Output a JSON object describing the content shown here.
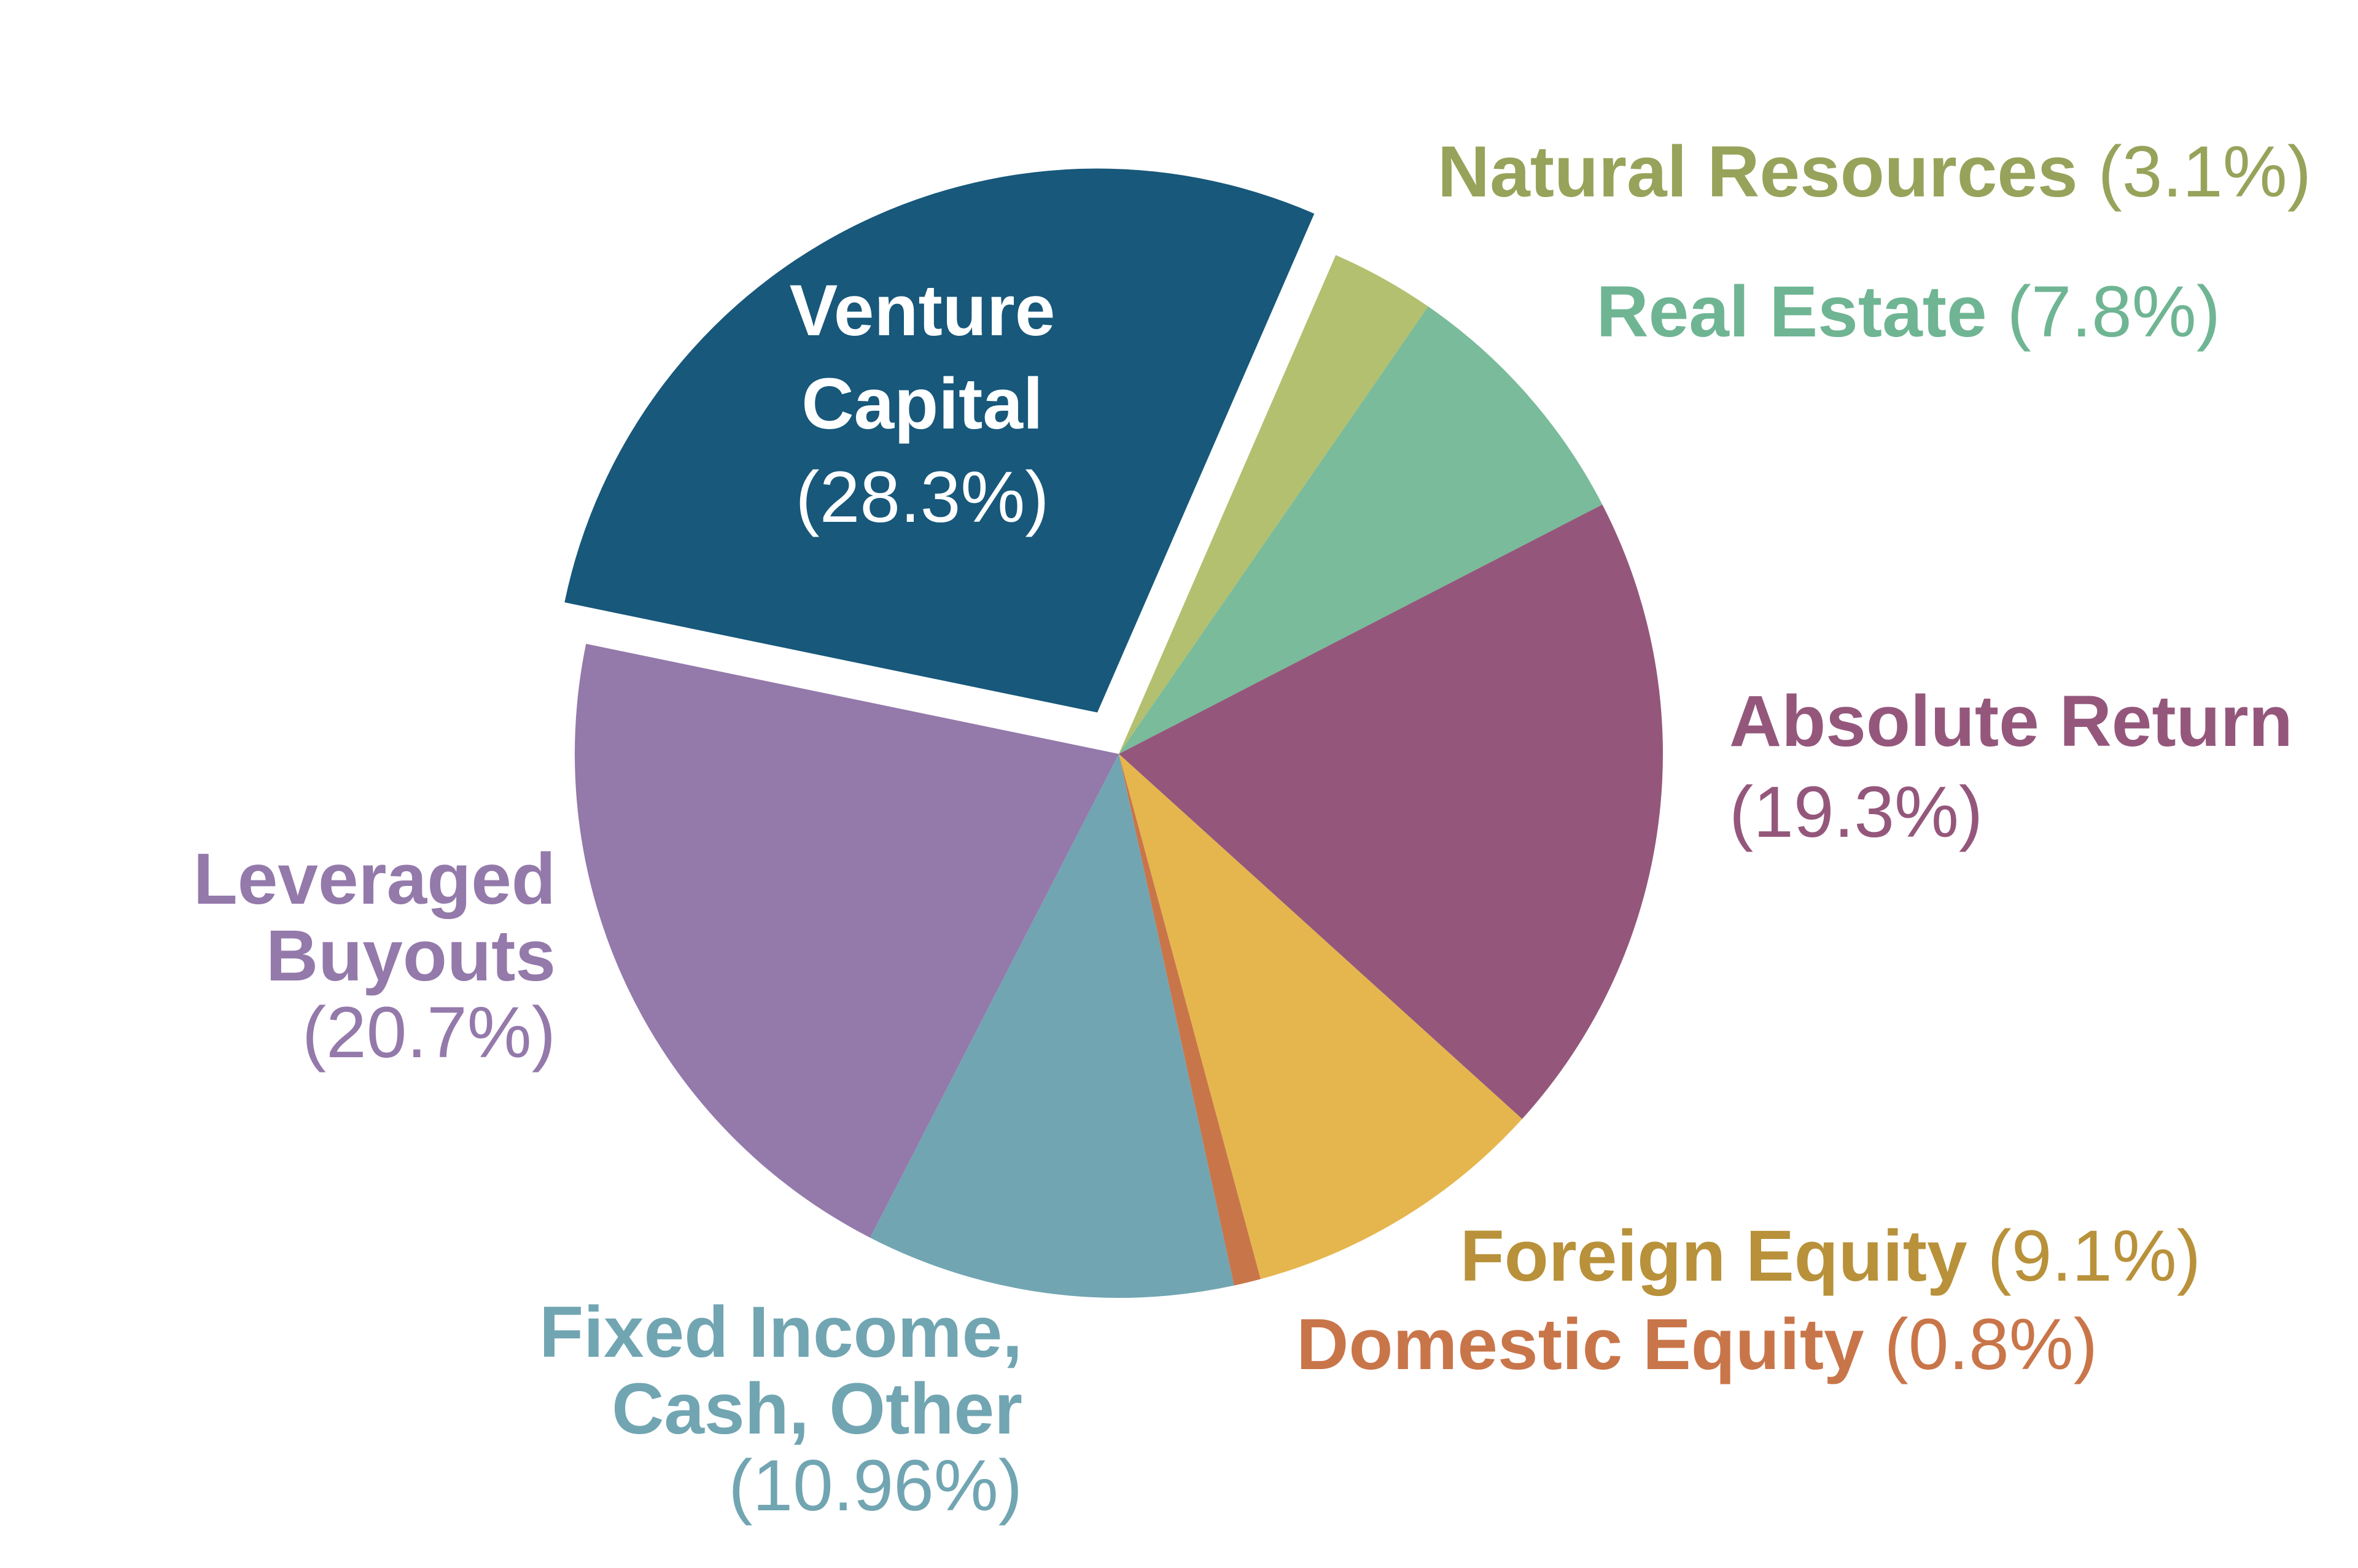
{
  "chart_data": {
    "type": "pie",
    "title": "",
    "start_angle_deg": 23.5,
    "direction": "clockwise",
    "exploded": [
      "Venture Capital"
    ],
    "slices": [
      {
        "key": "natural-resources",
        "label": "Natural Resources",
        "lines": [
          "Natural Resources"
        ],
        "pct_text": "(3.1%)",
        "value": 3.1,
        "color": "#b3c070",
        "label_color": "#97a35a",
        "label_layout": "inline"
      },
      {
        "key": "real-estate",
        "label": "Real Estate",
        "lines": [
          "Real Estate"
        ],
        "pct_text": "(7.8%)",
        "value": 7.8,
        "color": "#79bb9a",
        "label_color": "#6fb593",
        "label_layout": "inline"
      },
      {
        "key": "absolute-return",
        "label": "Absolute Return",
        "lines": [
          "Absolute Return"
        ],
        "pct_text": "(19.3%)",
        "value": 19.3,
        "color": "#94577b",
        "label_color": "#94577b",
        "label_layout": "stacked"
      },
      {
        "key": "foreign-equity",
        "label": "Foreign Equity",
        "lines": [
          "Foreign Equity"
        ],
        "pct_text": "(9.1%)",
        "value": 9.1,
        "color": "#e5b64e",
        "label_color": "#b8913a",
        "label_layout": "inline"
      },
      {
        "key": "domestic-equity",
        "label": "Domestic Equity",
        "lines": [
          "Domestic Equity"
        ],
        "pct_text": "(0.8%)",
        "value": 0.8,
        "color": "#c9754a",
        "label_color": "#c9754a",
        "label_layout": "inline"
      },
      {
        "key": "fixed-income-cash-other",
        "label": "Fixed Income, Cash, Other",
        "lines": [
          "Fixed Income,",
          "Cash, Other"
        ],
        "pct_text": "(10.96%)",
        "value": 10.96,
        "color": "#71a5b2",
        "label_color": "#71a5b2",
        "label_layout": "stacked"
      },
      {
        "key": "leveraged-buyouts",
        "label": "Leveraged Buyouts",
        "lines": [
          "Leveraged",
          "Buyouts"
        ],
        "pct_text": "(20.7%)",
        "value": 20.7,
        "color": "#9479ab",
        "label_color": "#9479ab",
        "label_layout": "stacked"
      },
      {
        "key": "venture-capital",
        "label": "Venture Capital",
        "lines": [
          "Venture",
          "Capital"
        ],
        "pct_text": "(28.3%)",
        "value": 28.3,
        "color": "#17587b",
        "label_color": "#ffffff",
        "label_layout": "stacked"
      }
    ]
  }
}
